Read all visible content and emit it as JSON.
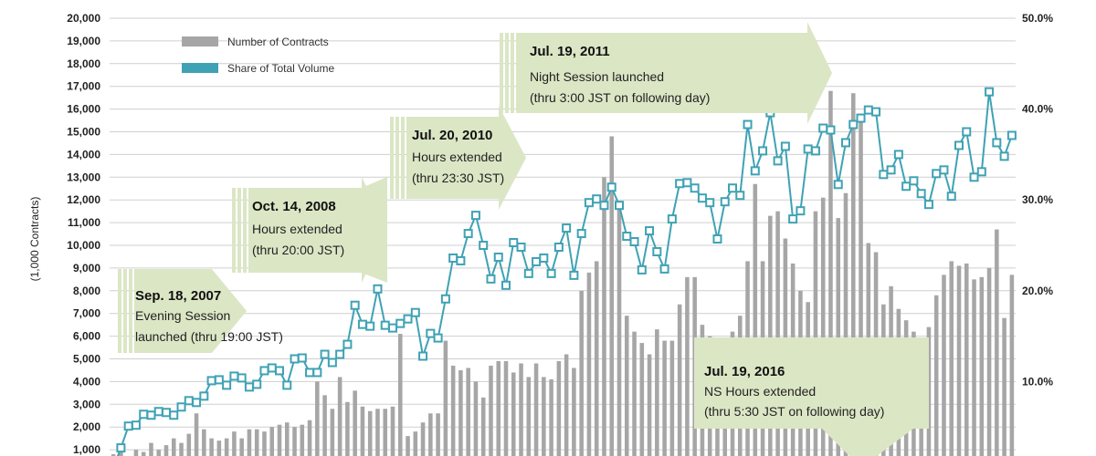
{
  "chart_data": {
    "type": "bar+line",
    "ylabel": "(1,000 Contracts)",
    "ylim": [
      0,
      20000
    ],
    "y2lim": [
      0,
      50
    ],
    "left_ticks": [
      "1,000",
      "2,000",
      "3,000",
      "4,000",
      "5,000",
      "6,000",
      "7,000",
      "8,000",
      "9,000",
      "10,000",
      "11,000",
      "12,000",
      "13,000",
      "14,000",
      "15,000",
      "16,000",
      "17,000",
      "18,000",
      "19,000",
      "20,000"
    ],
    "left_tick_values": [
      1000,
      2000,
      3000,
      4000,
      5000,
      6000,
      7000,
      8000,
      9000,
      10000,
      11000,
      12000,
      13000,
      14000,
      15000,
      16000,
      17000,
      18000,
      19000,
      20000
    ],
    "right_ticks": [
      "10.0%",
      "20.0%",
      "30.0%",
      "40.0%",
      "50.0%"
    ],
    "right_tick_values": [
      10,
      20,
      30,
      40,
      50
    ],
    "colors": {
      "bars": "#a6a6a6",
      "line": "#3fa2b4",
      "marker_fill": "#ffffff",
      "annotation": "#dbe6c5"
    },
    "series": [
      {
        "name": "Number of Contracts",
        "kind": "bar",
        "values": [
          800,
          900,
          700,
          1000,
          900,
          1300,
          1000,
          1200,
          1500,
          1300,
          1700,
          2600,
          1900,
          1500,
          1400,
          1500,
          1800,
          1500,
          1900,
          1900,
          1800,
          2000,
          2100,
          2200,
          2000,
          2100,
          2300,
          4000,
          3400,
          2800,
          4200,
          3100,
          3600,
          2900,
          2700,
          2800,
          2800,
          2900,
          6100,
          1600,
          1800,
          2200,
          2600,
          2600,
          5800,
          4700,
          4500,
          4600,
          4000,
          3300,
          4700,
          4900,
          4900,
          4400,
          4800,
          4200,
          4800,
          4200,
          4100,
          4900,
          5200,
          4600,
          8000,
          8800,
          9300,
          13000,
          14800,
          11800,
          6900,
          6200,
          5700,
          5200,
          6300,
          5800,
          5800,
          7400,
          8600,
          8600,
          6500,
          6000,
          5400,
          4700,
          6200,
          6900,
          9300,
          12700,
          9300,
          11300,
          11500,
          10300,
          9200,
          8000,
          7500,
          11500,
          12100,
          16800,
          11200,
          12300,
          16700,
          15800,
          10100,
          9700,
          7400,
          8200,
          7200,
          6700,
          6200,
          3600,
          6400,
          7800,
          8700,
          9300,
          9100,
          9200,
          8500,
          8600,
          9000,
          10700,
          6800,
          8700
        ]
      },
      {
        "name": "Share of Total Volume",
        "kind": "line",
        "values": [
          0.5,
          2.7,
          5.1,
          5.2,
          6.4,
          6.3,
          6.7,
          6.6,
          6.3,
          7.2,
          7.9,
          7.7,
          8.4,
          10.1,
          10.2,
          9.6,
          10.6,
          10.4,
          9.4,
          9.7,
          11.2,
          11.5,
          11.2,
          9.6,
          12.5,
          12.6,
          11.0,
          11.0,
          13.0,
          12.1,
          13.0,
          14.1,
          18.4,
          16.3,
          16.1,
          20.2,
          16.2,
          15.9,
          16.4,
          16.9,
          17.6,
          12.8,
          15.3,
          14.8,
          19.1,
          23.6,
          23.3,
          26.3,
          28.3,
          25.0,
          21.3,
          23.7,
          20.6,
          25.3,
          24.8,
          21.9,
          23.2,
          23.6,
          21.9,
          24.8,
          26.9,
          21.7,
          26.3,
          29.7,
          30.1,
          29.4,
          31.4,
          29.4,
          26.0,
          25.4,
          22.3,
          26.6,
          24.3,
          22.4,
          27.9,
          31.8,
          31.9,
          31.3,
          30.2,
          29.7,
          25.7,
          29.8,
          31.3,
          30.5,
          38.3,
          33.2,
          35.4,
          39.6,
          34.3,
          35.9,
          27.9,
          28.8,
          35.6,
          35.4,
          37.9,
          37.7,
          31.7,
          36.3,
          38.3,
          39.0,
          39.9,
          39.7,
          32.8,
          33.3,
          35.0,
          31.5,
          32.1,
          30.7,
          29.5,
          32.9,
          33.3,
          30.4,
          36.0,
          37.5,
          32.5,
          33.1,
          41.9,
          36.3,
          34.8,
          37.1
        ]
      }
    ],
    "legend": [
      {
        "label": "Number of Contracts",
        "swatch": "bar"
      },
      {
        "label": "Share of Total Volume",
        "swatch": "line"
      }
    ],
    "annotations": [
      {
        "title": "Sep. 18, 2007",
        "lines": [
          "Evening Session",
          "launched (thru 19:00 JST)"
        ]
      },
      {
        "title": "Oct. 14, 2008",
        "lines": [
          "Hours extended",
          "(thru 20:00 JST)"
        ]
      },
      {
        "title": "Jul. 20, 2010",
        "lines": [
          "Hours extended",
          "(thru 23:30 JST)"
        ]
      },
      {
        "title": "Jul. 19, 2011",
        "lines": [
          "Night Session launched",
          "(thru 3:00 JST on following day)"
        ]
      },
      {
        "title": "Jul. 19, 2016",
        "lines": [
          "NS Hours extended",
          "(thru 5:30 JST on following day)"
        ]
      }
    ]
  }
}
